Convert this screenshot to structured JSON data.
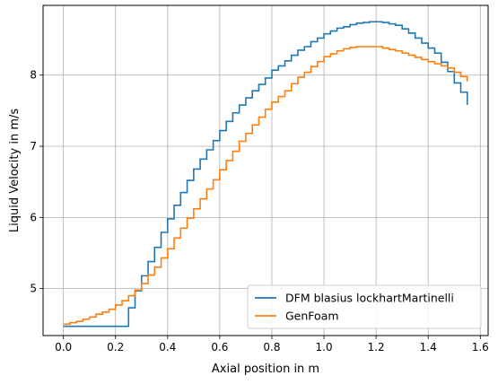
{
  "chart_data": {
    "type": "line",
    "step": true,
    "title": "",
    "xlabel": "Axial position in m",
    "ylabel": "Liquid Velocity in m/s",
    "xlim": [
      -0.078,
      1.63
    ],
    "ylim": [
      4.34,
      8.98
    ],
    "xticks": [
      0.0,
      0.2,
      0.4,
      0.6,
      0.8,
      1.0,
      1.2,
      1.4,
      1.6
    ],
    "xtick_labels": [
      "0.0",
      "0.2",
      "0.4",
      "0.6",
      "0.8",
      "1.0",
      "1.2",
      "1.4",
      "1.6"
    ],
    "yticks": [
      5,
      6,
      7,
      8
    ],
    "ytick_labels": [
      "5",
      "6",
      "7",
      "8"
    ],
    "grid": true,
    "legend": "lower-right",
    "series": [
      {
        "name": "DFM blasius lockhartMartinelli",
        "color": "#1f77b4",
        "x": [
          0.0,
          0.025,
          0.05,
          0.075,
          0.1,
          0.125,
          0.15,
          0.175,
          0.2,
          0.225,
          0.25,
          0.275,
          0.3,
          0.325,
          0.35,
          0.375,
          0.4,
          0.425,
          0.45,
          0.475,
          0.5,
          0.525,
          0.55,
          0.575,
          0.6,
          0.625,
          0.65,
          0.675,
          0.7,
          0.725,
          0.75,
          0.775,
          0.8,
          0.825,
          0.85,
          0.875,
          0.9,
          0.925,
          0.95,
          0.975,
          1.0,
          1.025,
          1.05,
          1.075,
          1.1,
          1.125,
          1.15,
          1.175,
          1.2,
          1.225,
          1.25,
          1.275,
          1.3,
          1.325,
          1.35,
          1.375,
          1.4,
          1.425,
          1.45,
          1.475,
          1.5,
          1.525,
          1.55
        ],
        "y": [
          4.47,
          4.47,
          4.47,
          4.47,
          4.47,
          4.47,
          4.47,
          4.47,
          4.47,
          4.47,
          4.73,
          4.97,
          5.18,
          5.38,
          5.58,
          5.79,
          5.98,
          6.17,
          6.35,
          6.52,
          6.68,
          6.82,
          6.95,
          7.08,
          7.22,
          7.35,
          7.47,
          7.58,
          7.68,
          7.78,
          7.87,
          7.96,
          8.07,
          8.13,
          8.2,
          8.28,
          8.35,
          8.4,
          8.47,
          8.52,
          8.58,
          8.62,
          8.66,
          8.68,
          8.71,
          8.73,
          8.74,
          8.75,
          8.75,
          8.74,
          8.72,
          8.7,
          8.65,
          8.59,
          8.52,
          8.45,
          8.38,
          8.31,
          8.18,
          8.05,
          7.89,
          7.76,
          7.58
        ]
      },
      {
        "name": "GenFoam",
        "color": "#ff7f0e",
        "x": [
          0.0,
          0.025,
          0.05,
          0.075,
          0.1,
          0.125,
          0.15,
          0.175,
          0.2,
          0.225,
          0.25,
          0.275,
          0.3,
          0.325,
          0.35,
          0.375,
          0.4,
          0.425,
          0.45,
          0.475,
          0.5,
          0.525,
          0.55,
          0.575,
          0.6,
          0.625,
          0.65,
          0.675,
          0.7,
          0.725,
          0.75,
          0.775,
          0.8,
          0.825,
          0.85,
          0.875,
          0.9,
          0.925,
          0.95,
          0.975,
          1.0,
          1.025,
          1.05,
          1.075,
          1.1,
          1.125,
          1.15,
          1.175,
          1.2,
          1.225,
          1.25,
          1.275,
          1.3,
          1.325,
          1.35,
          1.375,
          1.4,
          1.425,
          1.45,
          1.475,
          1.5,
          1.525,
          1.55
        ],
        "y": [
          4.5,
          4.52,
          4.54,
          4.57,
          4.6,
          4.64,
          4.67,
          4.71,
          4.77,
          4.83,
          4.9,
          4.98,
          5.07,
          5.19,
          5.3,
          5.43,
          5.56,
          5.71,
          5.85,
          5.99,
          6.12,
          6.26,
          6.4,
          6.53,
          6.67,
          6.8,
          6.93,
          7.07,
          7.18,
          7.3,
          7.41,
          7.52,
          7.62,
          7.7,
          7.78,
          7.88,
          7.97,
          8.04,
          8.12,
          8.19,
          8.26,
          8.3,
          8.34,
          8.37,
          8.39,
          8.4,
          8.4,
          8.4,
          8.4,
          8.38,
          8.36,
          8.34,
          8.31,
          8.28,
          8.25,
          8.22,
          8.19,
          8.16,
          8.13,
          8.1,
          8.04,
          7.98,
          7.91
        ]
      }
    ]
  }
}
